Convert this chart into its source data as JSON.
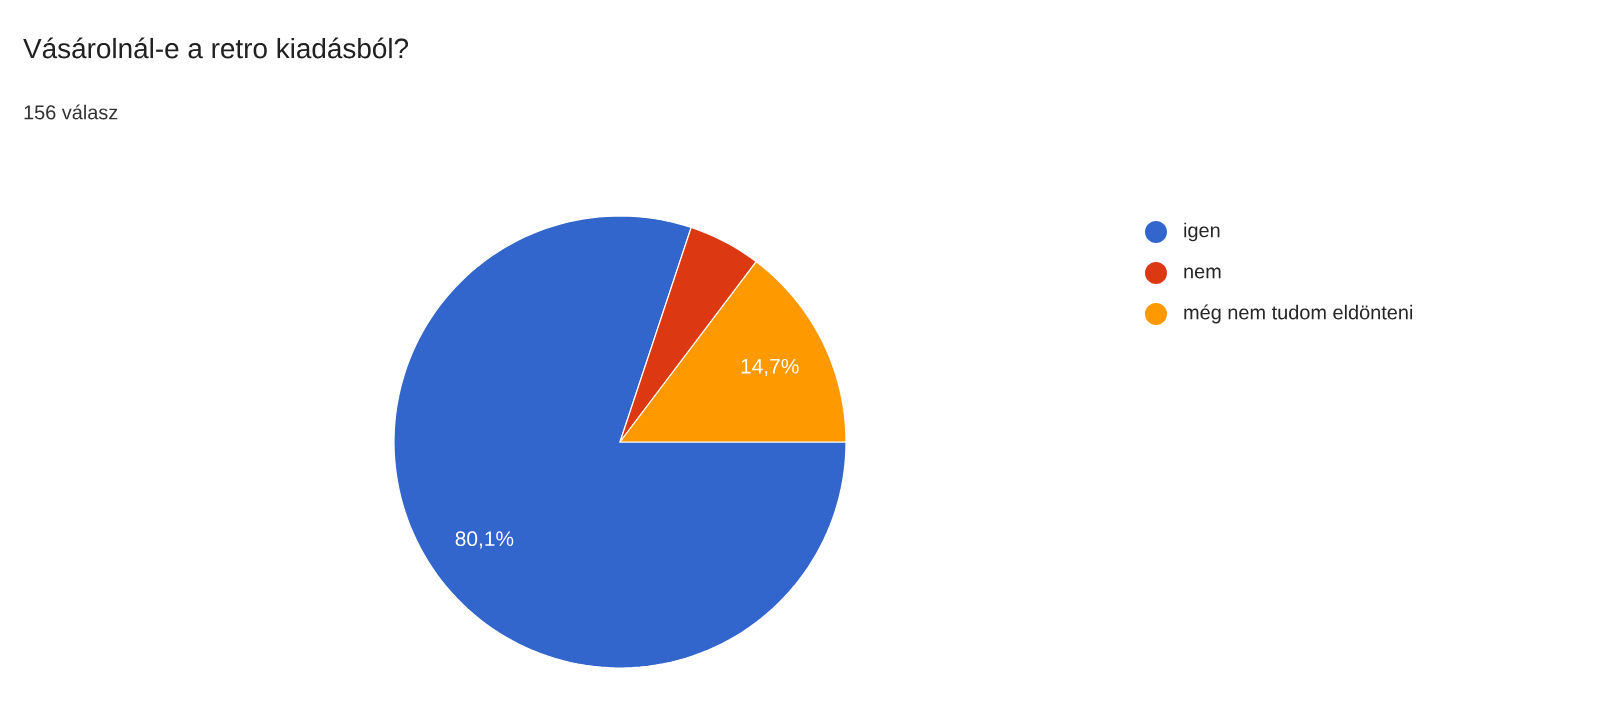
{
  "chart_data": {
    "type": "pie",
    "title": "Vásárolnál-e a retro kiadásból?",
    "subtitle": "156 válasz",
    "categories": [
      "igen",
      "nem",
      "még nem tudom eldönteni"
    ],
    "values": [
      80.1,
      5.2,
      14.7
    ],
    "colors": [
      "#3366cc",
      "#dc3912",
      "#ff9900"
    ],
    "value_labels": [
      "80,1%",
      null,
      "14,7%"
    ],
    "legend": "right"
  }
}
